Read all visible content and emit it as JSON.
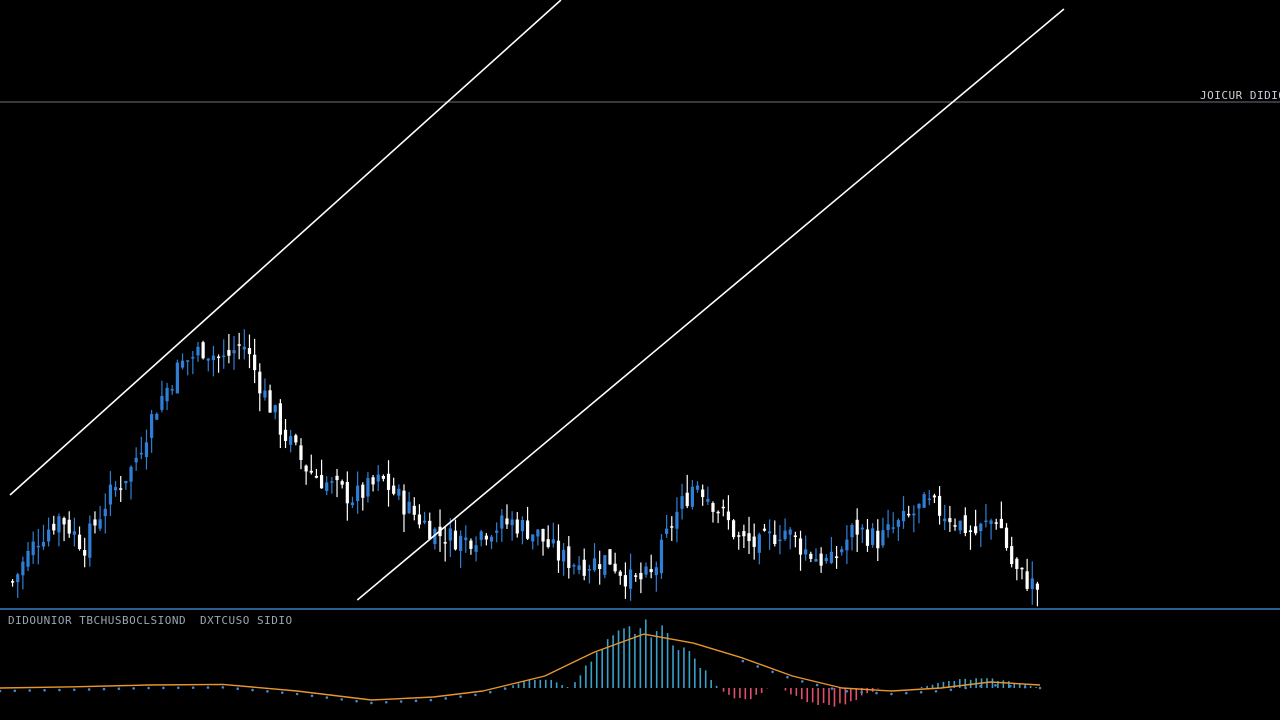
{
  "price_label": "JOICUR DIDIO",
  "indicator_label_left": "DIDOUNIOR TBCHUSBOCLSIOND",
  "indicator_label_right": "DXTCUSO SIDIO",
  "colors": {
    "background": "#000000",
    "bull_candle": "#2f7fd6",
    "bear_candle": "#ffffff",
    "trendline": "#ffffff",
    "horizontal_line": "#6b7178",
    "pane_separator": "#3a7fc4",
    "hist_positive": "#3aa0c8",
    "hist_negative": "#e0506a",
    "signal_line": "#e8962c",
    "dots": "#3f86d8"
  },
  "chart_data": [
    {
      "type": "candlestick",
      "title": "",
      "xlabel": "",
      "ylabel": "",
      "grid": false,
      "ylim": [
        0,
        100
      ],
      "x_count": 200,
      "anchors": [
        [
          0,
          3
        ],
        [
          6,
          10
        ],
        [
          12,
          14
        ],
        [
          18,
          9
        ],
        [
          24,
          17
        ],
        [
          30,
          22
        ],
        [
          36,
          32
        ],
        [
          42,
          39
        ],
        [
          48,
          42
        ],
        [
          53,
          40
        ],
        [
          58,
          43
        ],
        [
          63,
          35
        ],
        [
          68,
          28
        ],
        [
          74,
          22
        ],
        [
          80,
          19
        ],
        [
          86,
          17
        ],
        [
          93,
          20
        ],
        [
          100,
          15
        ],
        [
          107,
          11
        ],
        [
          114,
          10
        ],
        [
          120,
          12
        ],
        [
          126,
          13
        ],
        [
          132,
          11
        ],
        [
          138,
          7
        ],
        [
          144,
          6
        ],
        [
          150,
          7
        ],
        [
          156,
          3
        ],
        [
          161,
          4
        ],
        [
          166,
          13
        ],
        [
          172,
          20
        ],
        [
          178,
          15
        ],
        [
          183,
          10
        ],
        [
          188,
          9
        ],
        [
          194,
          12
        ],
        [
          200,
          8
        ],
        [
          206,
          6
        ],
        [
          212,
          12
        ],
        [
          218,
          10
        ],
        [
          224,
          13
        ],
        [
          230,
          16
        ],
        [
          236,
          14
        ],
        [
          242,
          11
        ],
        [
          248,
          14
        ],
        [
          252,
          5
        ],
        [
          256,
          3
        ],
        [
          258,
          2
        ]
      ],
      "horizontal_level": 83,
      "trendlines": [
        {
          "from": [
            0,
            17.5
          ],
          "to": [
            138,
            100
          ]
        },
        {
          "from": [
            87,
            0
          ],
          "to": [
            264,
            98.5
          ]
        }
      ]
    },
    {
      "type": "bar",
      "title": "",
      "indicator": "histogram + signal line",
      "ylim": [
        -1,
        1
      ],
      "signal_anchors": [
        [
          0,
          0.0
        ],
        [
          30,
          0.02
        ],
        [
          60,
          0.05
        ],
        [
          90,
          0.06
        ],
        [
          120,
          -0.05
        ],
        [
          150,
          -0.2
        ],
        [
          175,
          -0.15
        ],
        [
          195,
          -0.05
        ],
        [
          220,
          0.2
        ],
        [
          240,
          0.6
        ],
        [
          260,
          0.9
        ],
        [
          280,
          0.75
        ],
        [
          300,
          0.5
        ],
        [
          320,
          0.2
        ],
        [
          340,
          0.0
        ],
        [
          360,
          -0.05
        ],
        [
          380,
          0.0
        ],
        [
          400,
          0.1
        ],
        [
          420,
          0.05
        ]
      ],
      "hist_segments": [
        {
          "from": 205,
          "to": 230,
          "sign": 1,
          "peak": 0.15
        },
        {
          "from": 230,
          "to": 290,
          "sign": 1,
          "peak": 1.0
        },
        {
          "from": 290,
          "to": 310,
          "sign": -1,
          "peak": 0.4
        },
        {
          "from": 315,
          "to": 355,
          "sign": -1,
          "peak": 0.55
        },
        {
          "from": 370,
          "to": 420,
          "sign": 1,
          "peak": 0.15
        }
      ]
    }
  ]
}
